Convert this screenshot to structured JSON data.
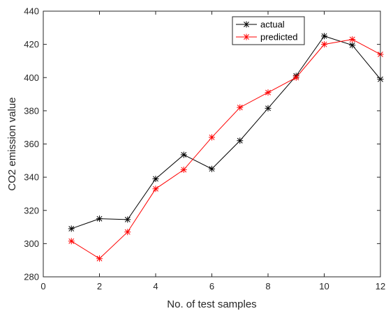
{
  "chart_data": {
    "type": "line",
    "title": "",
    "xlabel": "No. of test samples",
    "ylabel": "CO2 emission value",
    "xlim": [
      0,
      12
    ],
    "ylim": [
      280,
      440
    ],
    "xticks": [
      "0",
      "2",
      "4",
      "6",
      "8",
      "10",
      "12"
    ],
    "yticks": [
      "280",
      "300",
      "320",
      "340",
      "360",
      "380",
      "400",
      "420",
      "440"
    ],
    "grid": false,
    "legend_position": "top-right",
    "x": [
      1,
      2,
      3,
      4,
      5,
      6,
      7,
      8,
      9,
      10,
      11,
      12
    ],
    "series": [
      {
        "name": "actual",
        "color": "#000000",
        "marker": "asterisk",
        "values": [
          309,
          315,
          314.5,
          339,
          353.5,
          345,
          362,
          381.5,
          401,
          425,
          419.5,
          399
        ]
      },
      {
        "name": "predicted",
        "color": "#ff0000",
        "marker": "asterisk",
        "values": [
          301.5,
          291,
          307,
          333,
          344.5,
          364,
          382,
          391,
          400,
          420,
          423,
          414
        ]
      }
    ]
  }
}
